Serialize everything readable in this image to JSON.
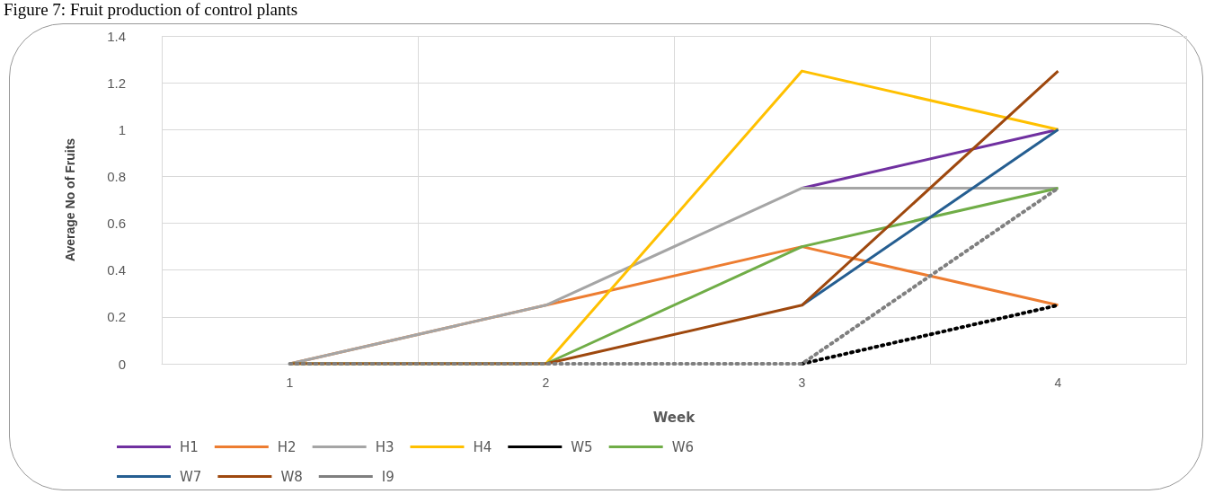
{
  "chart_data": {
    "type": "line",
    "title": "Figure 7: Fruit production of control plants",
    "xlabel": "Week",
    "ylabel": "Average No of Fruits",
    "categories": [
      "1",
      "2",
      "3",
      "4"
    ],
    "series": [
      {
        "name": "H1",
        "color": "#7030a0",
        "values": [
          null,
          null,
          0.75,
          1
        ]
      },
      {
        "name": "H2",
        "color": "#ed7d31",
        "values": [
          0,
          0.25,
          0.5,
          0.25
        ]
      },
      {
        "name": "H3",
        "color": "#a5a5a5",
        "values": [
          0,
          0.25,
          0.75,
          0.75
        ]
      },
      {
        "name": "H4",
        "color": "#ffc000",
        "values": [
          0,
          0,
          1.25,
          1
        ]
      },
      {
        "name": "W5",
        "color": "#000000",
        "line_style": "dotted",
        "values": [
          null,
          null,
          0,
          0.25
        ]
      },
      {
        "name": "W6",
        "color": "#70ad47",
        "values": [
          0,
          0,
          0.5,
          0.75
        ]
      },
      {
        "name": "W7",
        "color": "#255e91",
        "values": [
          null,
          null,
          0.25,
          1
        ]
      },
      {
        "name": "W8",
        "color": "#9e480e",
        "values": [
          0,
          0,
          0.25,
          1.25
        ]
      },
      {
        "name": "I9",
        "color": "#7f7f7f",
        "line_style": "dotted",
        "values": [
          0,
          0,
          0,
          0.75
        ]
      }
    ],
    "ylim": [
      0,
      1.4
    ],
    "yticks": [
      0,
      0.2,
      0.4,
      0.6,
      0.8,
      1,
      1.2,
      1.4
    ],
    "grid": true,
    "legend": "bottom left",
    "marker": "none",
    "line_style": "solid"
  }
}
